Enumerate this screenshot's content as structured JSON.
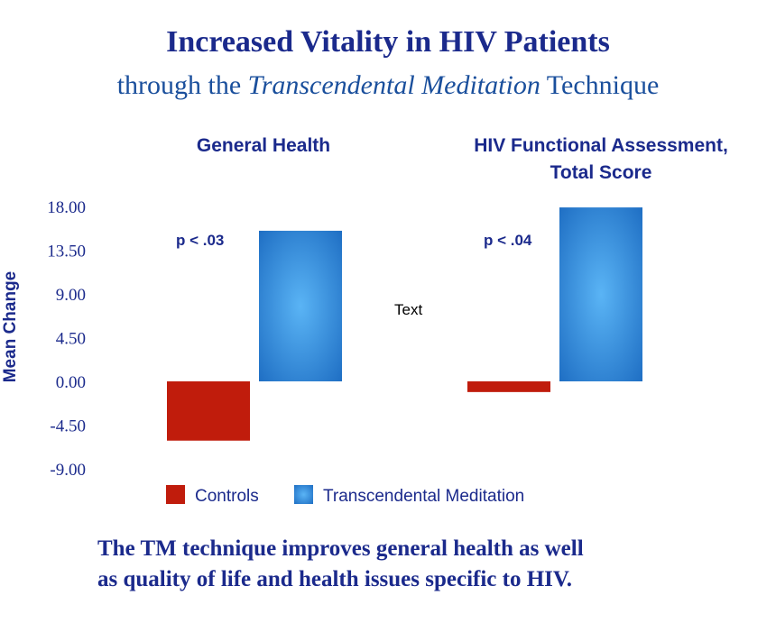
{
  "title": "Increased Vitality in HIV Patients",
  "subtitle": {
    "before": "through the ",
    "italic": "Transcendental Meditation",
    "after": " Technique"
  },
  "caption": {
    "line1": "The TM technique improves general health as well",
    "line2": "as quality of life and health issues specific to HIV."
  },
  "colors": {
    "title": "#1b2a8c",
    "subtitle": "#1a4f9c",
    "controls": "#c01c0c",
    "tm": "#1f6fc4",
    "tm_highlight": "#5ab4f5",
    "axis_text": "#1b2a8c",
    "panel_text": "#1b2a8c"
  },
  "placeholder_text": "Text",
  "chart_data": {
    "type": "bar",
    "ylabel": "Mean Change",
    "ylim": [
      -9,
      18
    ],
    "yticks": [
      "18.00",
      "13.50",
      "9.00",
      "4.50",
      "0.00",
      "-4.50",
      "-9.00"
    ],
    "ytick_values": [
      18,
      13.5,
      9,
      4.5,
      0,
      -4.5,
      -9
    ],
    "legend": {
      "position": "bottom",
      "entries": [
        "Controls",
        "Transcendental Meditation"
      ]
    },
    "panels": [
      {
        "title_lines": [
          "General Health"
        ],
        "annotation": "p < .03",
        "series": [
          {
            "name": "Controls",
            "value": -6.1
          },
          {
            "name": "Transcendental Meditation",
            "value": 15.5
          }
        ]
      },
      {
        "title_lines": [
          "HIV Functional Assessment,",
          "Total Score"
        ],
        "annotation": "p < .04",
        "series": [
          {
            "name": "Controls",
            "value": -1.1
          },
          {
            "name": "Transcendental Meditation",
            "value": 17.9
          }
        ]
      }
    ]
  }
}
